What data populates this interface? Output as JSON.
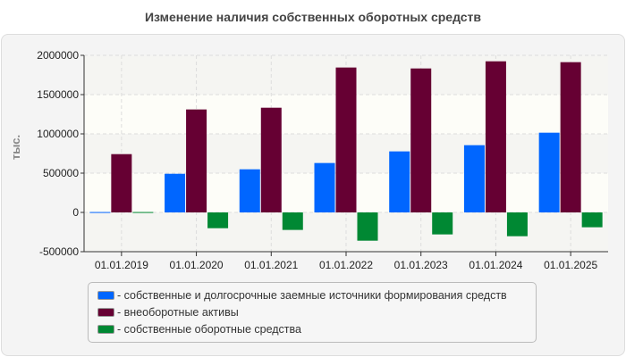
{
  "chart_data": {
    "type": "bar",
    "title": "Изменение наличия собственных оборотных средств",
    "ylabel": "тыс.",
    "xlabel": "",
    "categories": [
      "01.01.2019",
      "01.01.2020",
      "01.01.2021",
      "01.01.2022",
      "01.01.2023",
      "01.01.2024",
      "01.01.2025"
    ],
    "ylim": [
      -500000,
      2000000
    ],
    "yticks": [
      -500000,
      0,
      500000,
      1000000,
      1500000,
      2000000
    ],
    "ytick_labels": [
      "-500000",
      "0",
      "500000",
      "1000000",
      "1500000",
      "2000000"
    ],
    "grid": true,
    "legend_placement": "bottom",
    "series": [
      {
        "name": "- собственные и долгосрочные заемные источники формирования средств",
        "color": "#0066ff",
        "values": [
          5000,
          492000,
          549000,
          629000,
          777000,
          856000,
          1015000
        ]
      },
      {
        "name": "- внеоборотные активы",
        "color": "#660033",
        "values": [
          742000,
          1311000,
          1333000,
          1845000,
          1833000,
          1924000,
          1913000
        ]
      },
      {
        "name": "- собственные оборотные средства",
        "color": "#008833",
        "values": [
          5000,
          -201000,
          -223000,
          -360000,
          -280000,
          -303000,
          -189000
        ]
      }
    ]
  }
}
